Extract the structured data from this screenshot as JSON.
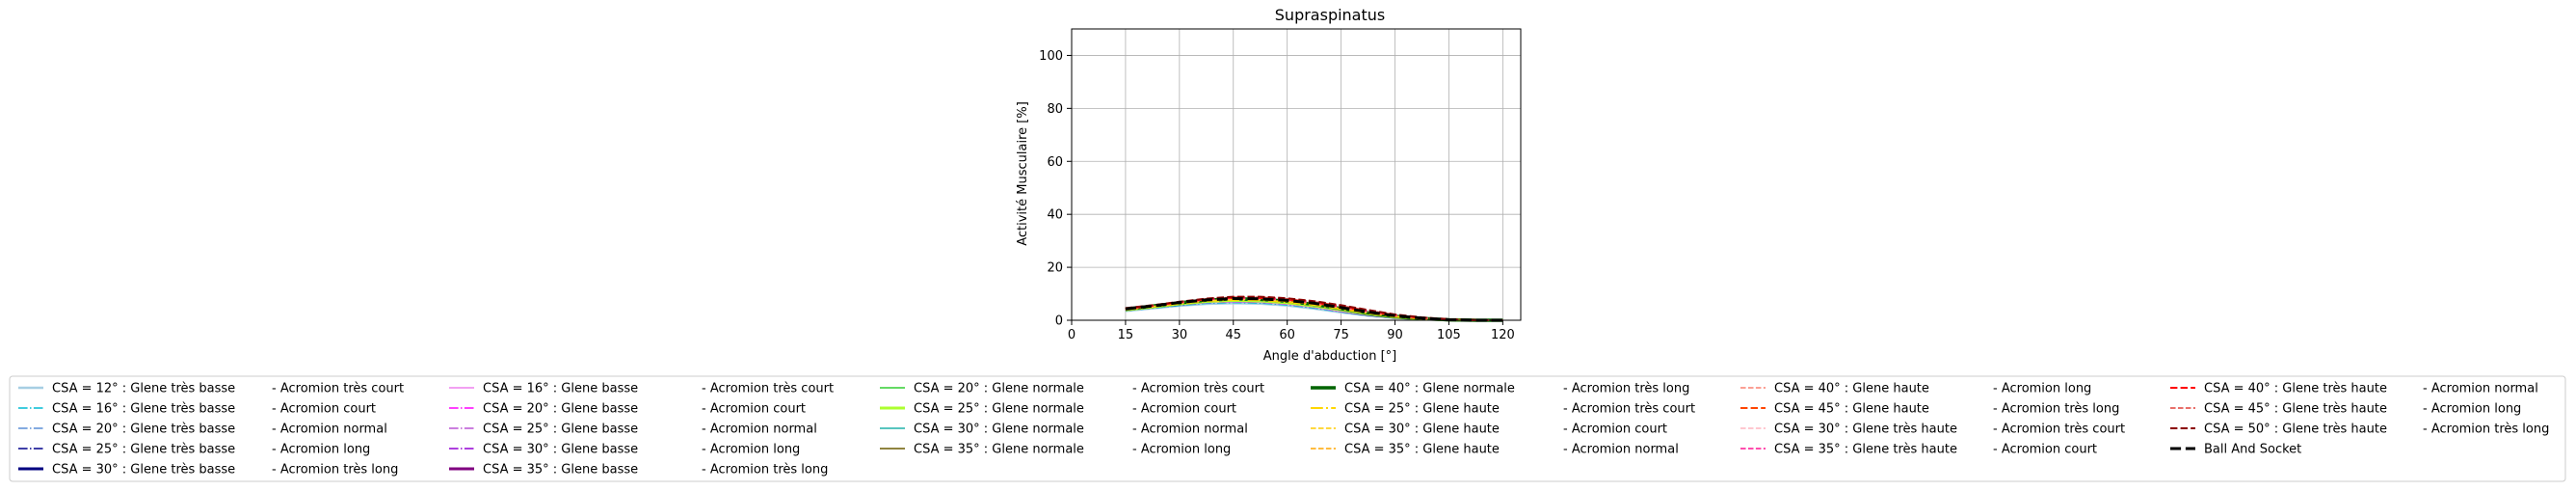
{
  "chart_data": {
    "type": "line",
    "title": "Supraspinatus",
    "xlabel": "Angle d'abduction [°]",
    "ylabel": "Activité Musculaire [%]",
    "xlim": [
      0,
      125
    ],
    "ylim": [
      0,
      110
    ],
    "xticks": [
      0,
      15,
      30,
      45,
      60,
      75,
      90,
      105,
      120
    ],
    "yticks": [
      0,
      20,
      40,
      60,
      80,
      100
    ],
    "grid": true,
    "legend_position": "bottom",
    "x": [
      15,
      22.5,
      30,
      37.5,
      45,
      52.5,
      60,
      67.5,
      75,
      82.5,
      90,
      97.5,
      105,
      112.5,
      120
    ],
    "series": [
      {
        "name": "CSA = 12° : Glene très basse",
        "color": "#a6cee3",
        "dash": "solid",
        "width": 2.5,
        "values": [
          3.5,
          4.5,
          5.5,
          6.2,
          6.5,
          6.3,
          5.6,
          4.4,
          3.0,
          1.8,
          0.9,
          0.4,
          0.1,
          0.0,
          0.0
        ]
      },
      {
        "name": "CSA = 16° : Glene très basse",
        "color": "#00bcd4",
        "dash": "dashdot",
        "width": 1.5,
        "values": [
          3.6,
          4.6,
          5.6,
          6.4,
          6.7,
          6.5,
          5.8,
          4.6,
          3.2,
          1.9,
          1.0,
          0.4,
          0.1,
          0.0,
          0.0
        ]
      },
      {
        "name": "CSA = 20° : Glene très basse",
        "color": "#5b8fd6",
        "dash": "dashdot",
        "width": 1.5,
        "values": [
          3.7,
          4.8,
          5.8,
          6.6,
          6.9,
          6.7,
          6.0,
          4.8,
          3.3,
          2.0,
          1.0,
          0.4,
          0.1,
          0.0,
          0.0
        ]
      },
      {
        "name": "CSA = 25° : Glene très basse",
        "color": "#00008b",
        "dash": "dashdot",
        "width": 1.5,
        "values": [
          3.8,
          4.9,
          6.0,
          6.8,
          7.1,
          6.9,
          6.2,
          5.0,
          3.5,
          2.1,
          1.1,
          0.5,
          0.1,
          0.0,
          0.0
        ]
      },
      {
        "name": "CSA = 30° : Glene très basse",
        "color": "#000080",
        "dash": "solid",
        "width": 3,
        "values": [
          3.9,
          5.0,
          6.1,
          7.0,
          7.3,
          7.1,
          6.4,
          5.2,
          3.6,
          2.2,
          1.1,
          0.5,
          0.1,
          0.0,
          0.0
        ]
      },
      {
        "name": "CSA = 16° : Glene basse",
        "color": "#ee82ee",
        "dash": "solid",
        "width": 1.5,
        "values": [
          3.7,
          4.8,
          5.9,
          6.7,
          7.0,
          6.8,
          6.1,
          4.9,
          3.4,
          2.1,
          1.0,
          0.4,
          0.1,
          0.0,
          0.0
        ]
      },
      {
        "name": "CSA = 20° : Glene basse",
        "color": "#ff00ff",
        "dash": "dashdot",
        "width": 1.5,
        "values": [
          3.8,
          4.9,
          6.0,
          6.9,
          7.2,
          7.0,
          6.3,
          5.1,
          3.6,
          2.2,
          1.1,
          0.5,
          0.1,
          0.0,
          0.0
        ]
      },
      {
        "name": "CSA = 25° : Glene basse",
        "color": "#ba55d3",
        "dash": "dashdot",
        "width": 1.5,
        "values": [
          3.9,
          5.0,
          6.2,
          7.1,
          7.4,
          7.2,
          6.5,
          5.3,
          3.7,
          2.3,
          1.2,
          0.5,
          0.1,
          0.0,
          0.0
        ]
      },
      {
        "name": "CSA = 30° : Glene basse",
        "color": "#9400d3",
        "dash": "dashdot",
        "width": 1.5,
        "values": [
          4.0,
          5.1,
          6.3,
          7.3,
          7.6,
          7.4,
          6.7,
          5.5,
          3.9,
          2.4,
          1.2,
          0.5,
          0.1,
          0.0,
          0.0
        ]
      },
      {
        "name": "CSA = 35° : Glene basse",
        "color": "#800080",
        "dash": "solid",
        "width": 3,
        "values": [
          4.1,
          5.2,
          6.4,
          7.4,
          7.8,
          7.6,
          6.9,
          5.7,
          4.1,
          2.5,
          1.3,
          0.6,
          0.2,
          0.0,
          0.0
        ]
      },
      {
        "name": "CSA = 20° : Glene normale",
        "color": "#32cd32",
        "dash": "solid",
        "width": 1.5,
        "values": [
          3.8,
          4.9,
          6.0,
          6.9,
          7.3,
          7.1,
          6.4,
          5.2,
          3.7,
          2.3,
          1.2,
          0.5,
          0.1,
          0.0,
          0.0
        ]
      },
      {
        "name": "CSA = 25° : Glene normale",
        "color": "#adff2f",
        "dash": "solid",
        "width": 3,
        "values": [
          3.9,
          5.0,
          6.2,
          7.1,
          7.5,
          7.3,
          6.6,
          5.4,
          3.9,
          2.4,
          1.2,
          0.5,
          0.1,
          0.0,
          0.0
        ]
      },
      {
        "name": "CSA = 30° : Glene normale",
        "color": "#20b2aa",
        "dash": "solid",
        "width": 1.5,
        "values": [
          4.0,
          5.1,
          6.3,
          7.3,
          7.7,
          7.5,
          6.8,
          5.6,
          4.0,
          2.5,
          1.3,
          0.6,
          0.1,
          0.0,
          0.0
        ]
      },
      {
        "name": "CSA = 35° : Glene normale",
        "color": "#6b5b00",
        "dash": "solid",
        "width": 1.5,
        "values": [
          4.1,
          5.2,
          6.5,
          7.5,
          7.9,
          7.7,
          7.0,
          5.8,
          4.2,
          2.6,
          1.4,
          0.6,
          0.2,
          0.0,
          0.0
        ]
      },
      {
        "name": "CSA = 40° : Glene normale",
        "color": "#006400",
        "dash": "solid",
        "width": 3.5,
        "values": [
          4.2,
          5.4,
          6.6,
          7.6,
          8.1,
          7.9,
          7.2,
          6.0,
          4.4,
          2.8,
          1.5,
          0.7,
          0.2,
          0.0,
          0.0
        ]
      },
      {
        "name": "CSA = 25° : Glene haute",
        "color": "#ffd700",
        "dash": "dashdot",
        "width": 2,
        "values": [
          4.0,
          5.1,
          6.3,
          7.3,
          7.7,
          7.6,
          6.9,
          5.8,
          4.3,
          2.7,
          1.4,
          0.6,
          0.2,
          0.0,
          0.0
        ]
      },
      {
        "name": "CSA = 30° : Glene haute",
        "color": "#ffcc00",
        "dash": "dashed",
        "width": 1.5,
        "values": [
          4.1,
          5.2,
          6.4,
          7.4,
          7.9,
          7.8,
          7.1,
          6.0,
          4.5,
          2.9,
          1.5,
          0.7,
          0.2,
          0.0,
          0.0
        ]
      },
      {
        "name": "CSA = 35° : Glene haute",
        "color": "#ffa500",
        "dash": "dashed",
        "width": 1.5,
        "values": [
          4.2,
          5.3,
          6.5,
          7.6,
          8.1,
          8.0,
          7.3,
          6.2,
          4.6,
          3.0,
          1.6,
          0.7,
          0.2,
          0.0,
          0.0
        ]
      },
      {
        "name": "CSA = 40° : Glene haute",
        "color": "#fa8072",
        "dash": "dashed",
        "width": 1.5,
        "values": [
          4.3,
          5.4,
          6.7,
          7.8,
          8.3,
          8.2,
          7.5,
          6.4,
          4.8,
          3.1,
          1.7,
          0.8,
          0.2,
          0.0,
          0.0
        ]
      },
      {
        "name": "CSA = 45° : Glene haute",
        "color": "#ff4500",
        "dash": "dashed",
        "width": 2,
        "values": [
          4.4,
          5.5,
          6.8,
          7.9,
          8.5,
          8.4,
          7.7,
          6.6,
          5.0,
          3.3,
          1.8,
          0.8,
          0.3,
          0.0,
          0.0
        ]
      },
      {
        "name": "CSA = 30° : Glene très haute",
        "color": "#ffb6c1",
        "dash": "dashed",
        "width": 1.5,
        "values": [
          4.2,
          5.3,
          6.6,
          7.7,
          8.2,
          8.1,
          7.5,
          6.4,
          4.9,
          3.2,
          1.8,
          0.8,
          0.2,
          0.0,
          0.0
        ]
      },
      {
        "name": "CSA = 35° : Glene très haute",
        "color": "#ff1493",
        "dash": "dashed",
        "width": 1.5,
        "values": [
          4.3,
          5.4,
          6.7,
          7.8,
          8.4,
          8.3,
          7.7,
          6.6,
          5.1,
          3.4,
          1.9,
          0.9,
          0.3,
          0.0,
          0.0
        ]
      },
      {
        "name": "CSA = 40° : Glene très haute",
        "color": "#ff0000",
        "dash": "dashed",
        "width": 2,
        "values": [
          4.4,
          5.5,
          6.8,
          8.0,
          8.6,
          8.5,
          7.9,
          6.8,
          5.3,
          3.6,
          2.0,
          1.0,
          0.3,
          0.0,
          0.0
        ]
      },
      {
        "name": "CSA = 45° : Glene très haute",
        "color": "#e0403a",
        "dash": "dashed",
        "width": 1.5,
        "values": [
          4.5,
          5.6,
          6.9,
          8.1,
          8.7,
          8.7,
          8.1,
          7.0,
          5.5,
          3.7,
          2.1,
          1.0,
          0.3,
          0.0,
          0.0
        ]
      },
      {
        "name": "CSA = 50° : Glene très haute",
        "color": "#8b0000",
        "dash": "dashed",
        "width": 2,
        "values": [
          4.6,
          5.7,
          7.0,
          8.2,
          8.9,
          8.9,
          8.3,
          7.2,
          5.7,
          3.9,
          2.2,
          1.1,
          0.4,
          0.1,
          0.0
        ]
      },
      {
        "name": "Ball And Socket",
        "color": "#000000",
        "dash": "dashed",
        "width": 3,
        "values": [
          4.3,
          5.4,
          6.7,
          7.7,
          8.2,
          8.1,
          7.5,
          6.4,
          4.8,
          3.1,
          1.7,
          0.8,
          0.2,
          0.0,
          0.0
        ]
      }
    ],
    "legend_columns": [
      {
        "entries": [
          {
            "label": "CSA = 12° : Glene très basse",
            "series": 0
          },
          {
            "label": "CSA = 16° : Glene très basse",
            "series": 1
          },
          {
            "label": "CSA = 20° : Glene très basse",
            "series": 2
          },
          {
            "label": "CSA = 25° : Glene très basse",
            "series": 3
          },
          {
            "label": "CSA = 30° : Glene très basse",
            "series": 4
          }
        ]
      },
      {
        "entries": [
          {
            "label": "-  Acromion très court"
          },
          {
            "label": "-  Acromion court"
          },
          {
            "label": "-  Acromion normal"
          },
          {
            "label": "-  Acromion long"
          },
          {
            "label": "-  Acromion très long"
          }
        ]
      },
      {
        "entries": [
          {
            "label": "CSA = 16° : Glene basse",
            "series": 5
          },
          {
            "label": "CSA = 20° : Glene basse",
            "series": 6
          },
          {
            "label": "CSA = 25° : Glene basse",
            "series": 7
          },
          {
            "label": "CSA = 30° : Glene basse",
            "series": 8
          },
          {
            "label": "CSA = 35° : Glene basse",
            "series": 9
          }
        ]
      },
      {
        "entries": [
          {
            "label": "-  Acromion très court"
          },
          {
            "label": "-  Acromion court"
          },
          {
            "label": "-  Acromion normal"
          },
          {
            "label": "-  Acromion long"
          },
          {
            "label": "-  Acromion très long"
          }
        ]
      },
      {
        "entries": [
          {
            "label": "CSA = 20° : Glene normale",
            "series": 10
          },
          {
            "label": "CSA = 25° : Glene normale",
            "series": 11
          },
          {
            "label": "CSA = 30° : Glene normale",
            "series": 12
          },
          {
            "label": "CSA = 35° : Glene normale",
            "series": 13
          }
        ]
      },
      {
        "entries": [
          {
            "label": "-  Acromion très court"
          },
          {
            "label": "-  Acromion court"
          },
          {
            "label": "-  Acromion normal"
          },
          {
            "label": "-  Acromion long"
          }
        ]
      },
      {
        "entries": [
          {
            "label": "CSA = 40° : Glene normale",
            "series": 14
          },
          {
            "label": "CSA = 25° : Glene haute",
            "series": 15
          },
          {
            "label": "CSA = 30° : Glene haute",
            "series": 16
          },
          {
            "label": "CSA = 35° : Glene haute",
            "series": 17
          }
        ]
      },
      {
        "entries": [
          {
            "label": "-  Acromion très long"
          },
          {
            "label": "-  Acromion très court"
          },
          {
            "label": "-  Acromion court"
          },
          {
            "label": "-  Acromion normal"
          }
        ]
      },
      {
        "entries": [
          {
            "label": "CSA = 40° : Glene haute",
            "series": 18
          },
          {
            "label": "CSA = 45° : Glene haute",
            "series": 19
          },
          {
            "label": "CSA = 30° : Glene très haute",
            "series": 20
          },
          {
            "label": "CSA = 35° : Glene très haute",
            "series": 21
          }
        ]
      },
      {
        "entries": [
          {
            "label": "-  Acromion long"
          },
          {
            "label": "-  Acromion très long"
          },
          {
            "label": "-  Acromion très court"
          },
          {
            "label": "-  Acromion court"
          }
        ]
      },
      {
        "entries": [
          {
            "label": "CSA = 40° : Glene très haute",
            "series": 22
          },
          {
            "label": "CSA = 45° : Glene très haute",
            "series": 23
          },
          {
            "label": "CSA = 50° : Glene très haute",
            "series": 24
          },
          {
            "label": "Ball And Socket",
            "series": 25
          }
        ]
      },
      {
        "entries": [
          {
            "label": "-  Acromion normal"
          },
          {
            "label": "-  Acromion long"
          },
          {
            "label": "-  Acromion très long"
          }
        ]
      }
    ]
  }
}
